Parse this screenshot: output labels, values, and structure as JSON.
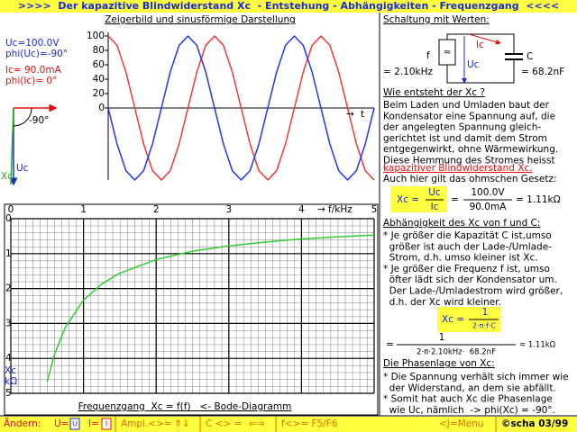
{
  "header": {
    "title": ">>>>  Der kapazitive Blindwiderstand Xc  - Entstehung - Abhängigkeiten - Frequenzgang  <<<<"
  },
  "left": {
    "uc": "Uc=100.0V",
    "phi_uc": "phi(Uc)=-90°",
    "ic": "Ic= 90.0mA",
    "phi_ic": "phi(Ic)= 0°",
    "phasor": {
      "angle": "-90°",
      "xc": "Xc",
      "uc": "Uc"
    }
  },
  "sine_chart": {
    "type": "line",
    "title": "Zeigerbild und sinusförmige Darstellung",
    "x_label": "t",
    "x": [
      0,
      30,
      60,
      90,
      120,
      150,
      180,
      210,
      240,
      270,
      300,
      330,
      360,
      390,
      420,
      450,
      480,
      510,
      540,
      570,
      600,
      630,
      660,
      690,
      720,
      750,
      780,
      810,
      840,
      870,
      900
    ],
    "xlim": [
      0,
      900
    ],
    "ylim": [
      -100,
      100
    ],
    "yticks": [
      0,
      20,
      40,
      60,
      80,
      100
    ],
    "series": [
      {
        "color": "#ff3333",
        "values": [
          100,
          87,
          50,
          0,
          -50,
          -87,
          -100,
          -87,
          -50,
          0,
          50,
          87,
          100,
          87,
          50,
          0,
          -50,
          -87,
          -100,
          -87,
          -50,
          0,
          50,
          87,
          100,
          87,
          50,
          0,
          -50,
          -87,
          -100
        ]
      },
      {
        "color": "#2233ff",
        "values": [
          0,
          -50,
          -87,
          -100,
          -87,
          -50,
          0,
          50,
          87,
          100,
          87,
          50,
          0,
          -50,
          -87,
          -100,
          -87,
          -50,
          0,
          50,
          87,
          100,
          87,
          50,
          0,
          -50,
          -87,
          -100,
          -87,
          -50,
          0
        ]
      }
    ]
  },
  "bode_chart": {
    "type": "line",
    "title": "Frequenzgang  Xc = f(f)   <- Bode-Diagramm",
    "x_label": "f/kHz",
    "y_label": [
      "Xc",
      "kΩ"
    ],
    "x": [
      0.5,
      0.6,
      0.75,
      1,
      1.25,
      1.5,
      2,
      2.5,
      3,
      3.5,
      4,
      4.5,
      5
    ],
    "xlim": [
      0,
      5
    ],
    "xticks": [
      0,
      1,
      2,
      3,
      4,
      5
    ],
    "ylim": [
      0,
      5
    ],
    "yticks": [
      0,
      1,
      2,
      3,
      4,
      5
    ],
    "y_reversed": true,
    "grid": true,
    "series": [
      {
        "color": "#33cc33",
        "values": [
          4.67,
          3.89,
          3.11,
          2.33,
          1.87,
          1.56,
          1.17,
          0.93,
          0.78,
          0.67,
          0.58,
          0.52,
          0.47
        ]
      }
    ]
  },
  "right": {
    "circuit_title": "Schaltung mit Werten:",
    "circuit": {
      "f": "f",
      "gen": "≈",
      "ic": "Ic",
      "uc": "Uc",
      "c": "C",
      "f_value": "= 2.10kHz",
      "c_value": "= 68.2nF"
    },
    "intro_title": "Wie entsteht der Xc ?",
    "intro_lines": [
      "Beim Laden und Umladen baut der",
      "Kondensator eine Spannung auf, die",
      "der angelegten Spannung gleich-",
      "gerichtet ist und damit dem Strom",
      "entgegenwirkt, ohne Wärmewirkung.",
      "Diese Hemmung des Stromes heisst"
    ],
    "intro_highlight": "kapazitiver Blindwiderstand Xc.",
    "intro_last": "Auch hier gilt das ohmschen Gesetz:",
    "formula1": {
      "lhs": "Xc =",
      "num": "Uc",
      "den": "Ic",
      "eq": "=",
      "num2": "100.0V",
      "den2": "90.0mA",
      "result": "= 1.11kΩ"
    },
    "dep_title": "Abhängigkeit des Xc von f und C:",
    "dep_lines": [
      "* Je größer die Kapazität C ist,umso",
      "  größer ist auch der Lade-/Umlade-",
      "  Strom, d.h. umso kleiner ist Xc.",
      "* Je größer die Frequenz f ist, umso",
      "  öfter lädt sich der Kondensator um.",
      "  Der Lade-/Umladestrom wird größer,",
      "  d.h. der Xc wird kleiner."
    ],
    "formula2": {
      "lhs": "Xc =",
      "num": "1",
      "den": "2·π·f·C"
    },
    "formula3": {
      "eq": "=",
      "num": "1",
      "den": "2·π·2.10kHz·  68.2nF",
      "result": "= 1.11kΩ"
    },
    "phase_title": "Die Phasenlage von Xc:",
    "phase_lines": [
      "* Die Spannung verhält sich immer wie",
      "  der Widerstand, an dem sie abfällt.",
      "* Somit hat auch Xc die Phasenlage",
      "  wie Uc, nämlich  -> phi(Xc) = -90°."
    ]
  },
  "footer": {
    "change": "Ändern:",
    "u": "U=",
    "u_key": "U",
    "i": "I=",
    "i_key": "I",
    "ampl": "Ampl.<>=",
    "ampl_keys": "⇑⇓",
    "c": "C <> =",
    "c_keys": "⇐⇒",
    "f": "f<>= F5/F6",
    "menu": "<J=Menu",
    "copy": "©scha 03/99"
  }
}
